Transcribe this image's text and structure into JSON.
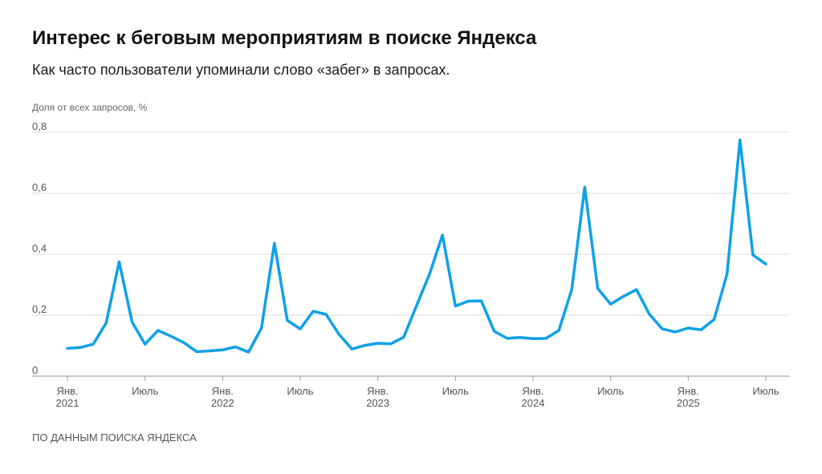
{
  "title": "Интерес к беговым мероприятиям в поиске Яндекса",
  "subtitle": "Как часто пользователи упоминали слово «забег» в запросах.",
  "source": "ПО ДАННЫМ ПОИСКА ЯНДЕКСА",
  "colors": {
    "line": "#0ea1e8"
  },
  "chart_data": {
    "type": "line",
    "ylabel": "Доля от всех запросов, %",
    "ylim": [
      0,
      0.8
    ],
    "yticks": [
      {
        "value": 0,
        "label": "0"
      },
      {
        "value": 0.2,
        "label": "0,2"
      },
      {
        "value": 0.4,
        "label": "0,4"
      },
      {
        "value": 0.6,
        "label": "0,6"
      },
      {
        "value": 0.8,
        "label": "0,8"
      }
    ],
    "xlim": [
      "2020-12",
      "2025-08"
    ],
    "xticks": [
      {
        "date": "2021-01",
        "label": [
          "Янв.",
          "2021"
        ]
      },
      {
        "date": "2021-07",
        "label": [
          "Июль"
        ]
      },
      {
        "date": "2022-01",
        "label": [
          "Янв.",
          "2022"
        ]
      },
      {
        "date": "2022-07",
        "label": [
          "Июль"
        ]
      },
      {
        "date": "2023-01",
        "label": [
          "Янв.",
          "2023"
        ]
      },
      {
        "date": "2023-07",
        "label": [
          "Июль"
        ]
      },
      {
        "date": "2024-01",
        "label": [
          "Янв.",
          "2024"
        ]
      },
      {
        "date": "2024-07",
        "label": [
          "Июль"
        ]
      },
      {
        "date": "2025-01",
        "label": [
          "Янв.",
          "2025"
        ]
      },
      {
        "date": "2025-07",
        "label": [
          "Июль"
        ]
      }
    ],
    "grid": true,
    "series": [
      {
        "points": [
          [
            "2021-01",
            0.091
          ],
          [
            "2021-02",
            0.094
          ],
          [
            "2021-03",
            0.105
          ],
          [
            "2021-04",
            0.175
          ],
          [
            "2021-05",
            0.375
          ],
          [
            "2021-06",
            0.177
          ],
          [
            "2021-07",
            0.105
          ],
          [
            "2021-08",
            0.15
          ],
          [
            "2021-09",
            0.131
          ],
          [
            "2021-10",
            0.11
          ],
          [
            "2021-11",
            0.08
          ],
          [
            "2021-12",
            0.083
          ],
          [
            "2022-01",
            0.086
          ],
          [
            "2022-02",
            0.096
          ],
          [
            "2022-03",
            0.079
          ],
          [
            "2022-04",
            0.158
          ],
          [
            "2022-05",
            0.436
          ],
          [
            "2022-06",
            0.183
          ],
          [
            "2022-07",
            0.155
          ],
          [
            "2022-08",
            0.213
          ],
          [
            "2022-09",
            0.203
          ],
          [
            "2022-10",
            0.137
          ],
          [
            "2022-11",
            0.089
          ],
          [
            "2022-12",
            0.101
          ],
          [
            "2023-01",
            0.108
          ],
          [
            "2023-02",
            0.106
          ],
          [
            "2023-03",
            0.128
          ],
          [
            "2023-04",
            0.232
          ],
          [
            "2023-05",
            0.335
          ],
          [
            "2023-06",
            0.463
          ],
          [
            "2023-07",
            0.23
          ],
          [
            "2023-08",
            0.246
          ],
          [
            "2023-09",
            0.247
          ],
          [
            "2023-10",
            0.147
          ],
          [
            "2023-11",
            0.124
          ],
          [
            "2023-12",
            0.127
          ],
          [
            "2024-01",
            0.123
          ],
          [
            "2024-02",
            0.124
          ],
          [
            "2024-03",
            0.15
          ],
          [
            "2024-04",
            0.285
          ],
          [
            "2024-05",
            0.62
          ],
          [
            "2024-06",
            0.288
          ],
          [
            "2024-07",
            0.236
          ],
          [
            "2024-08",
            0.262
          ],
          [
            "2024-09",
            0.284
          ],
          [
            "2024-10",
            0.203
          ],
          [
            "2024-11",
            0.155
          ],
          [
            "2024-12",
            0.145
          ],
          [
            "2025-01",
            0.158
          ],
          [
            "2025-02",
            0.152
          ],
          [
            "2025-03",
            0.186
          ],
          [
            "2025-04",
            0.335
          ],
          [
            "2025-05",
            0.775
          ],
          [
            "2025-06",
            0.398
          ],
          [
            "2025-07",
            0.368
          ]
        ]
      }
    ]
  }
}
